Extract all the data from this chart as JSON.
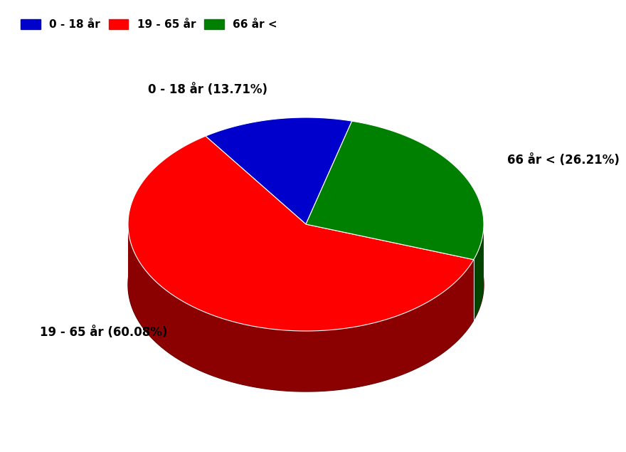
{
  "labels": [
    "0 - 18 år",
    "19 - 65 år",
    "66 år <"
  ],
  "values": [
    13.71,
    60.08,
    26.21
  ],
  "colors": [
    "#0000CC",
    "#FF0000",
    "#008000"
  ],
  "dark_colors": [
    "#000066",
    "#8B0000",
    "#004400"
  ],
  "shadow_base_color": "#6B0000",
  "label_texts": [
    "0 - 18 år (13.71%)",
    "19 - 65 år (60.08%)",
    "66 år < (26.21%)"
  ],
  "legend_labels": [
    "0 - 18 år",
    "19 - 65 år",
    "66 år <"
  ],
  "background_color": "#FFFFFF",
  "label_fontsize": 12,
  "legend_fontsize": 11,
  "startangle": 90
}
